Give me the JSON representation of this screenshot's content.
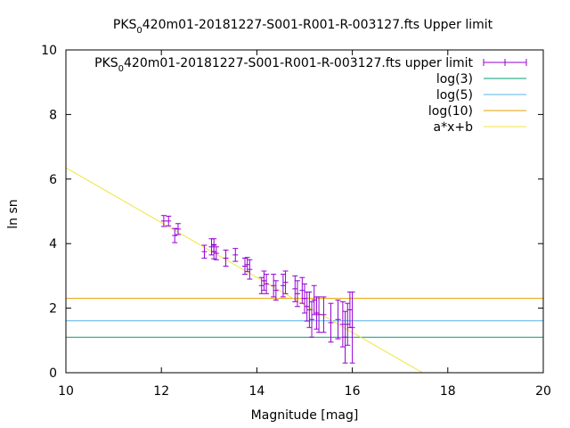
{
  "chart_data": {
    "type": "scatter",
    "title": "PKS 0420m01-20181227-S001-R001-R-003127.fts Upper limit",
    "title_parts": {
      "pre": "PKS",
      "sub": "0",
      "post": "420m01-20181227-S001-R001-R-003127.fts Upper limit"
    },
    "xlabel": "Magnitude [mag]",
    "ylabel": "ln sn",
    "xlim": [
      10,
      20
    ],
    "ylim": [
      0,
      10
    ],
    "x_ticks": [
      "10",
      "12",
      "14",
      "16",
      "18",
      "20"
    ],
    "y_ticks": [
      "0",
      "2",
      "4",
      "6",
      "8",
      "10"
    ],
    "grid": false,
    "legend_position": "top-right",
    "colors": {
      "points": "#9400d3",
      "log3": "#009e73",
      "log5": "#56b4e9",
      "log10": "#e69f00",
      "fit": "#f0e442"
    },
    "series": [
      {
        "name": "PKS 0420m01-20181227-S001-R001-R-003127.fts upper limit",
        "name_parts": {
          "pre": "PKS",
          "sub": "0",
          "post": "420m01-20181227-S001-R001-R-003127.fts upper limit"
        },
        "kind": "errorbars",
        "points": [
          {
            "x": 12.05,
            "y": 4.7,
            "err": 0.17
          },
          {
            "x": 12.15,
            "y": 4.7,
            "err": 0.15
          },
          {
            "x": 12.28,
            "y": 4.25,
            "err": 0.22
          },
          {
            "x": 12.35,
            "y": 4.45,
            "err": 0.17
          },
          {
            "x": 12.9,
            "y": 3.75,
            "err": 0.2
          },
          {
            "x": 13.05,
            "y": 3.9,
            "err": 0.25
          },
          {
            "x": 13.1,
            "y": 3.75,
            "err": 0.22
          },
          {
            "x": 13.1,
            "y": 3.95,
            "err": 0.2
          },
          {
            "x": 13.15,
            "y": 3.7,
            "err": 0.2
          },
          {
            "x": 13.35,
            "y": 3.55,
            "err": 0.25
          },
          {
            "x": 13.55,
            "y": 3.65,
            "err": 0.2
          },
          {
            "x": 13.75,
            "y": 3.3,
            "err": 0.25
          },
          {
            "x": 13.8,
            "y": 3.35,
            "err": 0.22
          },
          {
            "x": 13.85,
            "y": 3.2,
            "err": 0.3
          },
          {
            "x": 14.1,
            "y": 2.7,
            "err": 0.25
          },
          {
            "x": 14.15,
            "y": 2.85,
            "err": 0.3
          },
          {
            "x": 14.2,
            "y": 2.75,
            "err": 0.3
          },
          {
            "x": 14.35,
            "y": 2.7,
            "err": 0.35
          },
          {
            "x": 14.4,
            "y": 2.55,
            "err": 0.3
          },
          {
            "x": 14.55,
            "y": 2.7,
            "err": 0.35
          },
          {
            "x": 14.6,
            "y": 2.8,
            "err": 0.35
          },
          {
            "x": 14.8,
            "y": 2.6,
            "err": 0.4
          },
          {
            "x": 14.85,
            "y": 2.45,
            "err": 0.4
          },
          {
            "x": 14.95,
            "y": 2.55,
            "err": 0.4
          },
          {
            "x": 15.0,
            "y": 2.3,
            "err": 0.45
          },
          {
            "x": 15.05,
            "y": 2.05,
            "err": 0.45
          },
          {
            "x": 15.1,
            "y": 1.95,
            "err": 0.55
          },
          {
            "x": 15.15,
            "y": 1.65,
            "err": 0.55
          },
          {
            "x": 15.2,
            "y": 2.25,
            "err": 0.45
          },
          {
            "x": 15.25,
            "y": 1.85,
            "err": 0.5
          },
          {
            "x": 15.3,
            "y": 1.8,
            "err": 0.55
          },
          {
            "x": 15.4,
            "y": 1.8,
            "err": 0.55
          },
          {
            "x": 15.55,
            "y": 1.55,
            "err": 0.6
          },
          {
            "x": 15.7,
            "y": 1.65,
            "err": 0.6
          },
          {
            "x": 15.8,
            "y": 1.5,
            "err": 0.7
          },
          {
            "x": 15.85,
            "y": 1.1,
            "err": 0.8
          },
          {
            "x": 15.9,
            "y": 1.5,
            "err": 0.65
          },
          {
            "x": 15.95,
            "y": 1.95,
            "err": 0.55
          },
          {
            "x": 16.0,
            "y": 1.4,
            "err": 1.1
          }
        ]
      },
      {
        "name": "log(3)",
        "kind": "hline",
        "y": 1.0986
      },
      {
        "name": "log(5)",
        "kind": "hline",
        "y": 1.6094
      },
      {
        "name": "log(10)",
        "kind": "hline",
        "y": 2.3026
      },
      {
        "name": "a*x+b",
        "kind": "line",
        "slope": -0.85,
        "intercept": 14.85
      }
    ]
  }
}
